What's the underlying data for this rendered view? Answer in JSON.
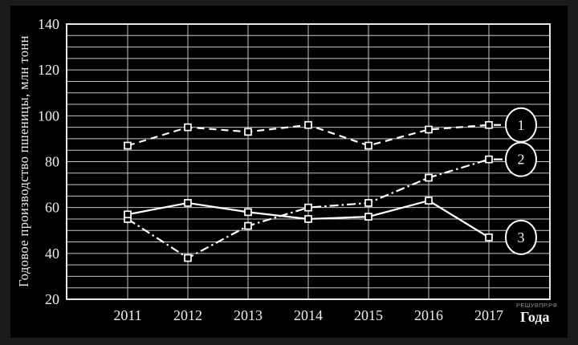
{
  "watermark": "РЕШУВПР.РФ",
  "chart_data": {
    "type": "line",
    "ylabel": "Годовое производство пшеницы, млн тонн",
    "xlabel": "Года",
    "x": [
      2011,
      2012,
      2013,
      2014,
      2015,
      2016,
      2017
    ],
    "ylim": [
      20,
      140
    ],
    "ytick_step": 20,
    "grid_step": 5,
    "grid": true,
    "legend_position": "right-circles",
    "marker": "open-square",
    "series": [
      {
        "name": "1",
        "style": "dashed",
        "values": [
          87,
          95,
          93,
          96,
          87,
          94,
          96
        ]
      },
      {
        "name": "2",
        "style": "dashdot",
        "values": [
          55,
          38,
          52,
          60,
          62,
          73,
          81
        ]
      },
      {
        "name": "3",
        "style": "solid",
        "values": [
          57,
          62,
          58,
          55,
          56,
          63,
          47
        ]
      }
    ],
    "colors": {
      "line": "#ffffff",
      "grid": "#c6c6c6",
      "border": "#e8e8e8",
      "text": "#f0f0f0",
      "background": "#000000",
      "frame": "#1b1b1b"
    }
  }
}
